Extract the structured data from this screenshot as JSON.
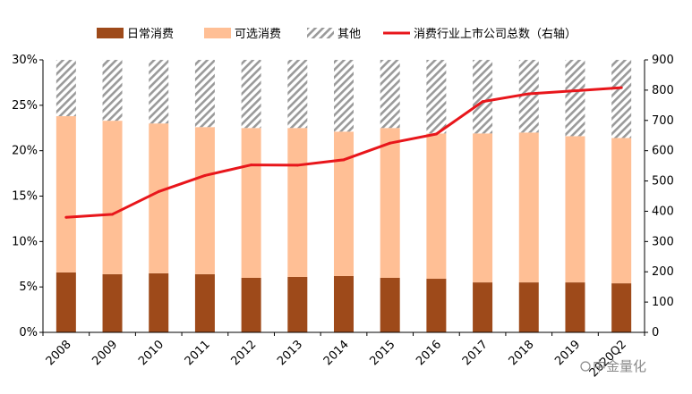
{
  "chart_data": {
    "type": "bar",
    "categories": [
      "2008",
      "2009",
      "2010",
      "2011",
      "2012",
      "2013",
      "2014",
      "2015",
      "2016",
      "2017",
      "2018",
      "2019",
      "2020Q2"
    ],
    "series": [
      {
        "name": "日常消费",
        "values": [
          6.6,
          6.4,
          6.5,
          6.4,
          6.0,
          6.1,
          6.2,
          6.0,
          5.9,
          5.5,
          5.5,
          5.5,
          5.4
        ],
        "color": "#9e4a1a"
      },
      {
        "name": "可选消费",
        "values": [
          17.2,
          16.9,
          16.5,
          16.2,
          16.5,
          16.4,
          15.9,
          16.5,
          16.0,
          16.4,
          16.5,
          16.1,
          16.0
        ],
        "color": "#ffbf95"
      },
      {
        "name": "其他",
        "values": [
          6.2,
          6.7,
          7.0,
          7.4,
          7.5,
          7.5,
          7.9,
          7.5,
          8.1,
          8.1,
          8.0,
          8.4,
          8.6
        ],
        "color": "#9a9a9a",
        "pattern": "hatch"
      }
    ],
    "line_series": {
      "name": "消费行业上市公司总数（右轴）",
      "values": [
        380,
        390,
        465,
        518,
        553,
        552,
        570,
        625,
        655,
        762,
        788,
        798,
        808
      ],
      "color": "#e8161b"
    },
    "ylim": [
      0,
      30
    ],
    "y_ticks": [
      "0%",
      "5%",
      "10%",
      "15%",
      "20%",
      "25%",
      "30%"
    ],
    "y2lim": [
      0,
      900
    ],
    "y2_ticks": [
      "0",
      "100",
      "200",
      "300",
      "400",
      "500",
      "600",
      "700",
      "800",
      "900"
    ],
    "legend_position": "top",
    "grid": false
  },
  "watermark": "中金量化"
}
